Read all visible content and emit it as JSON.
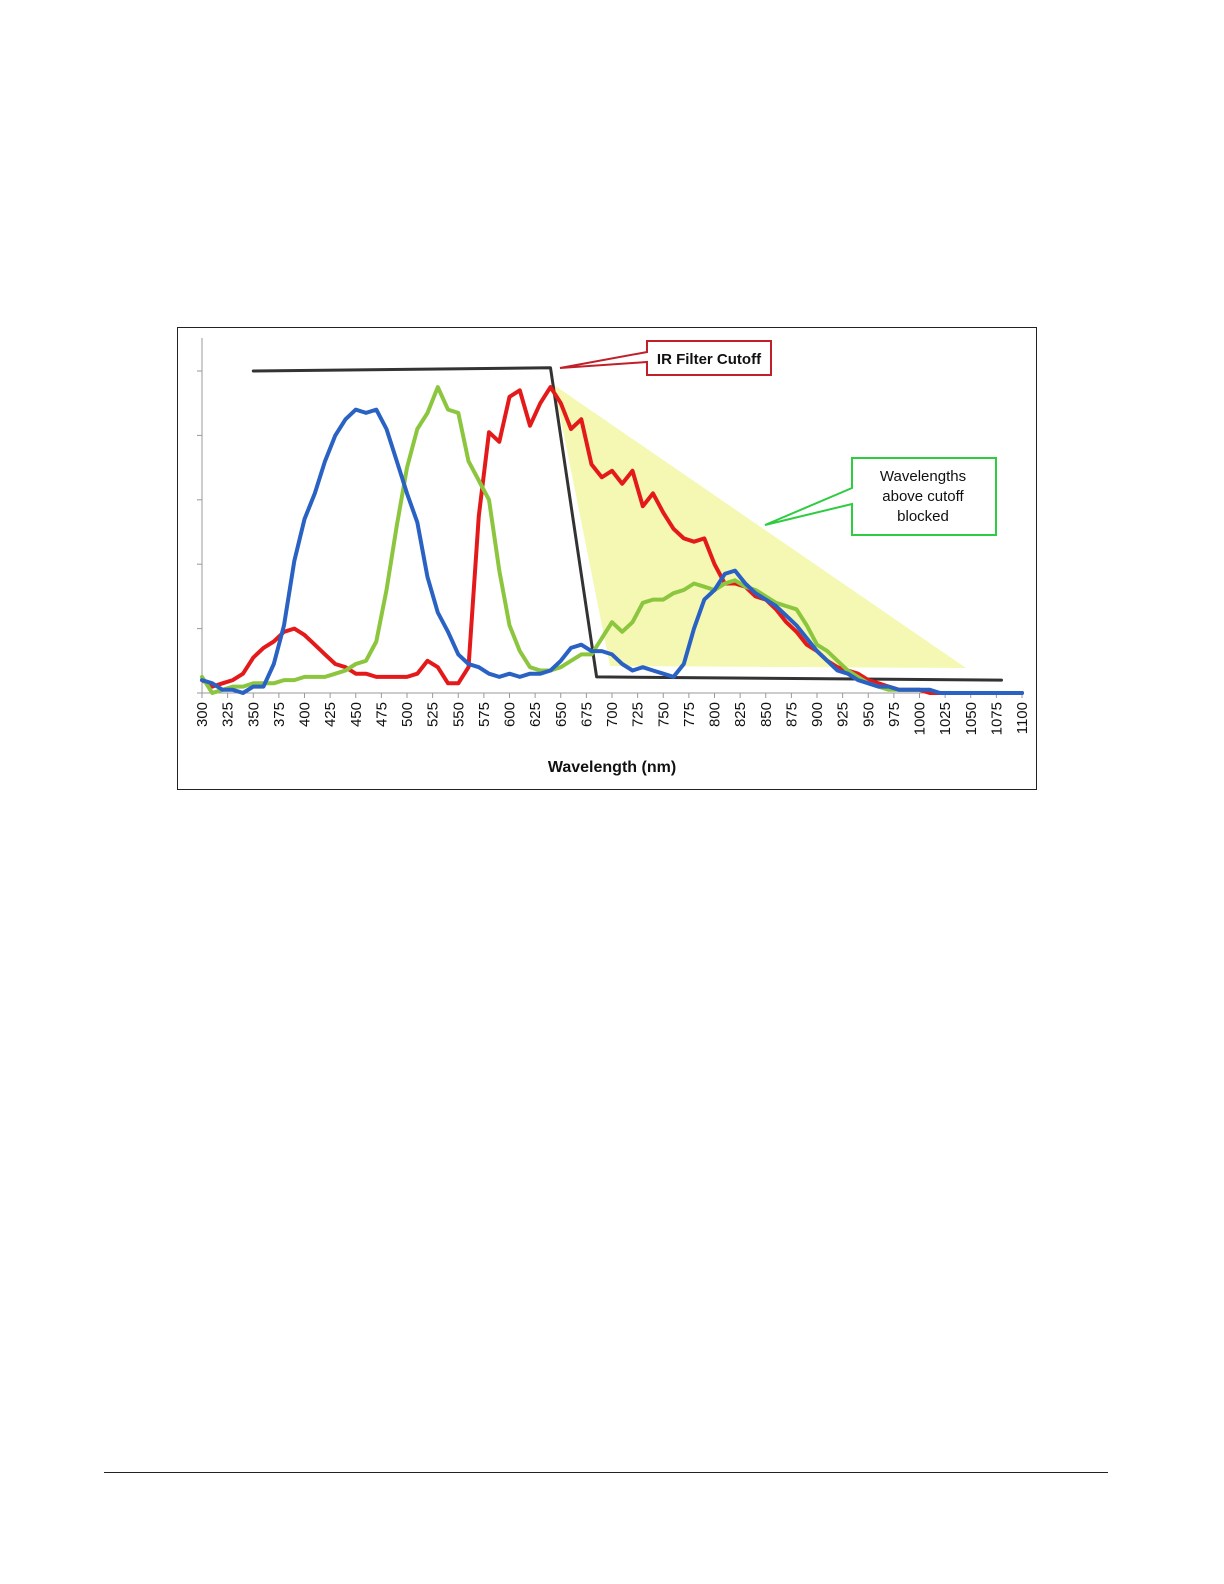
{
  "colors": {
    "red_series": "#e41a1a",
    "green_series": "#8cc63f",
    "blue_series": "#2a62c4",
    "filter_line": "#333333",
    "blocked_region": "#f2f7a6",
    "ir_callout_border": "#c0202a",
    "wl_callout_border": "#2ecc40"
  },
  "chart_data": {
    "type": "line",
    "title": "",
    "xlabel": "Wavelength (nm)",
    "ylabel": "",
    "xlim": [
      300,
      1100
    ],
    "ylim": [
      0,
      1
    ],
    "grid": false,
    "y_ticks": [
      0,
      0.2,
      0.4,
      0.6,
      0.8,
      1.0
    ],
    "x_ticks": [
      300,
      325,
      350,
      375,
      400,
      425,
      450,
      475,
      500,
      525,
      550,
      575,
      600,
      625,
      650,
      675,
      700,
      725,
      750,
      775,
      800,
      825,
      850,
      875,
      900,
      925,
      950,
      975,
      1000,
      1025,
      1050,
      1075,
      1100
    ],
    "series": [
      {
        "color": "#e41a1a",
        "x": [
          300,
          310,
          320,
          330,
          340,
          350,
          360,
          370,
          380,
          390,
          400,
          410,
          420,
          430,
          440,
          450,
          460,
          470,
          480,
          490,
          500,
          510,
          520,
          530,
          540,
          550,
          560,
          570,
          580,
          590,
          600,
          610,
          620,
          630,
          640,
          650,
          660,
          670,
          680,
          690,
          700,
          710,
          720,
          730,
          740,
          750,
          760,
          770,
          780,
          790,
          800,
          810,
          820,
          830,
          840,
          850,
          860,
          870,
          880,
          890,
          900,
          910,
          920,
          930,
          940,
          950,
          960,
          970,
          980,
          990,
          1000,
          1010,
          1020,
          1030,
          1040,
          1050,
          1060,
          1070,
          1080,
          1090,
          1100
        ],
        "y": [
          0.04,
          0.02,
          0.03,
          0.04,
          0.06,
          0.11,
          0.14,
          0.16,
          0.19,
          0.2,
          0.18,
          0.15,
          0.12,
          0.09,
          0.08,
          0.06,
          0.06,
          0.05,
          0.05,
          0.05,
          0.05,
          0.06,
          0.1,
          0.08,
          0.03,
          0.03,
          0.08,
          0.55,
          0.81,
          0.78,
          0.92,
          0.94,
          0.83,
          0.9,
          0.95,
          0.9,
          0.82,
          0.85,
          0.71,
          0.67,
          0.69,
          0.65,
          0.69,
          0.58,
          0.62,
          0.56,
          0.51,
          0.48,
          0.47,
          0.48,
          0.4,
          0.34,
          0.34,
          0.33,
          0.3,
          0.29,
          0.26,
          0.22,
          0.19,
          0.15,
          0.13,
          0.1,
          0.08,
          0.07,
          0.06,
          0.04,
          0.03,
          0.02,
          0.01,
          0.01,
          0.01,
          0.0,
          0.0,
          0.0,
          0.0,
          0.0,
          0.0,
          0.0,
          0.0,
          0.0,
          0.0
        ]
      },
      {
        "color": "#8cc63f",
        "x": [
          300,
          310,
          320,
          330,
          340,
          350,
          360,
          370,
          380,
          390,
          400,
          410,
          420,
          430,
          440,
          450,
          460,
          470,
          480,
          490,
          500,
          510,
          520,
          530,
          540,
          550,
          560,
          570,
          580,
          590,
          600,
          610,
          620,
          630,
          640,
          650,
          660,
          670,
          680,
          690,
          700,
          710,
          720,
          730,
          740,
          750,
          760,
          770,
          780,
          790,
          800,
          810,
          820,
          830,
          840,
          850,
          860,
          870,
          880,
          890,
          900,
          910,
          920,
          930,
          940,
          950,
          960,
          970,
          980,
          990,
          1000
        ],
        "y": [
          0.05,
          0.0,
          0.01,
          0.02,
          0.02,
          0.03,
          0.03,
          0.03,
          0.04,
          0.04,
          0.05,
          0.05,
          0.05,
          0.06,
          0.07,
          0.09,
          0.1,
          0.16,
          0.32,
          0.52,
          0.7,
          0.82,
          0.87,
          0.95,
          0.88,
          0.87,
          0.72,
          0.66,
          0.6,
          0.38,
          0.21,
          0.13,
          0.08,
          0.07,
          0.07,
          0.08,
          0.1,
          0.12,
          0.12,
          0.17,
          0.22,
          0.19,
          0.22,
          0.28,
          0.29,
          0.29,
          0.31,
          0.32,
          0.34,
          0.33,
          0.32,
          0.34,
          0.35,
          0.33,
          0.32,
          0.3,
          0.28,
          0.27,
          0.26,
          0.21,
          0.15,
          0.13,
          0.1,
          0.07,
          0.05,
          0.03,
          0.02,
          0.01,
          0.01,
          0.01,
          0.01
        ]
      },
      {
        "color": "#2a62c4",
        "x": [
          300,
          310,
          320,
          330,
          340,
          350,
          360,
          370,
          380,
          390,
          400,
          410,
          420,
          430,
          440,
          450,
          460,
          470,
          480,
          490,
          500,
          510,
          520,
          530,
          540,
          550,
          560,
          570,
          580,
          590,
          600,
          610,
          620,
          630,
          640,
          650,
          660,
          670,
          680,
          690,
          700,
          710,
          720,
          730,
          740,
          750,
          760,
          770,
          780,
          790,
          800,
          810,
          820,
          830,
          840,
          850,
          860,
          870,
          880,
          890,
          900,
          910,
          920,
          930,
          940,
          950,
          960,
          970,
          980,
          990,
          1000,
          1010,
          1020,
          1030,
          1040,
          1050,
          1060,
          1070,
          1080,
          1090,
          1100
        ],
        "y": [
          0.04,
          0.03,
          0.01,
          0.01,
          0.0,
          0.02,
          0.02,
          0.09,
          0.21,
          0.41,
          0.54,
          0.62,
          0.72,
          0.8,
          0.85,
          0.88,
          0.87,
          0.88,
          0.82,
          0.72,
          0.62,
          0.53,
          0.36,
          0.25,
          0.19,
          0.12,
          0.09,
          0.08,
          0.06,
          0.05,
          0.06,
          0.05,
          0.06,
          0.06,
          0.07,
          0.1,
          0.14,
          0.15,
          0.13,
          0.13,
          0.12,
          0.09,
          0.07,
          0.08,
          0.07,
          0.06,
          0.05,
          0.09,
          0.2,
          0.29,
          0.32,
          0.37,
          0.38,
          0.34,
          0.31,
          0.29,
          0.27,
          0.24,
          0.21,
          0.17,
          0.13,
          0.1,
          0.07,
          0.06,
          0.04,
          0.03,
          0.02,
          0.02,
          0.01,
          0.01,
          0.01,
          0.01,
          0.0,
          0.0,
          0.0,
          0.0,
          0.0,
          0.0,
          0.0,
          0.0,
          0.0
        ]
      },
      {
        "color": "#333333",
        "x": [
          350,
          640,
          685,
          1080
        ],
        "y": [
          1.0,
          1.01,
          0.05,
          0.04
        ]
      }
    ],
    "annotations": [
      {
        "text": "IR Filter Cutoff"
      },
      {
        "lines": [
          "Wavelengths",
          "above cutoff",
          "blocked"
        ]
      }
    ]
  }
}
